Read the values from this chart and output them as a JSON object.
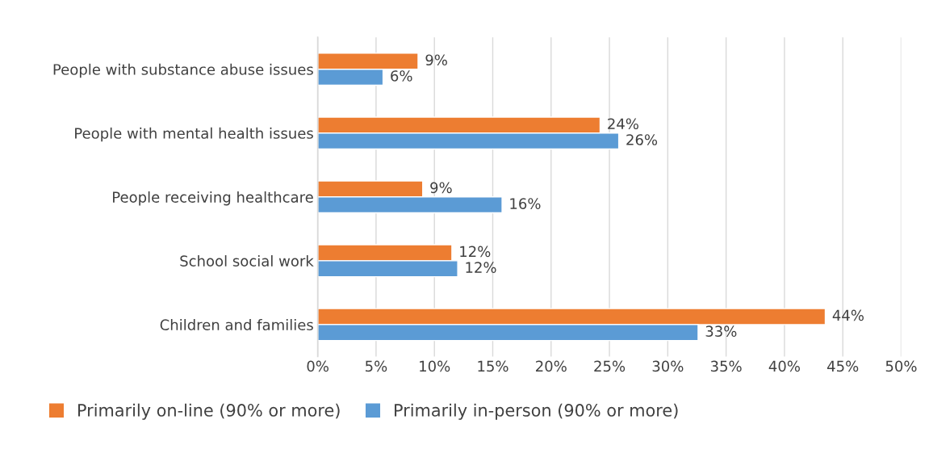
{
  "chart_data": {
    "type": "bar",
    "orientation": "horizontal",
    "categories": [
      "People with substance abuse issues",
      "People with mental health issues",
      "People receiving healthcare",
      "School social work",
      "Children and families"
    ],
    "series": [
      {
        "name": "Primarily on-line (90% or more)",
        "color": "#ed7d31",
        "values": [
          8.6,
          24.2,
          9.0,
          11.5,
          43.5
        ],
        "value_labels": [
          "9%",
          "24%",
          "9%",
          "12%",
          "44%"
        ]
      },
      {
        "name": "Primarily in-person (90% or more)",
        "color": "#5b9bd5",
        "values": [
          5.6,
          25.8,
          15.8,
          12.0,
          32.6
        ],
        "value_labels": [
          "6%",
          "26%",
          "16%",
          "12%",
          "33%"
        ]
      }
    ],
    "xlim": [
      0,
      50
    ],
    "xticks": [
      {
        "value": 0,
        "label": "0%"
      },
      {
        "value": 5,
        "label": "5%"
      },
      {
        "value": 10,
        "label": "10%"
      },
      {
        "value": 15,
        "label": "15%"
      },
      {
        "value": 20,
        "label": "20%"
      },
      {
        "value": 25,
        "label": "25%"
      },
      {
        "value": 30,
        "label": "30%"
      },
      {
        "value": 35,
        "label": "35%"
      },
      {
        "value": 40,
        "label": "40%"
      },
      {
        "value": 45,
        "label": "45%"
      },
      {
        "value": 50,
        "label": "50%"
      }
    ],
    "grid": "x",
    "legend": "bottom"
  }
}
